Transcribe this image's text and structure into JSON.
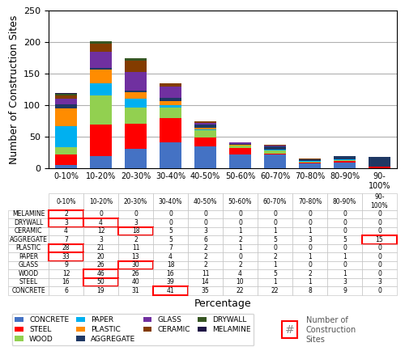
{
  "chart_data": {
    "type": "bar",
    "stacked": true,
    "categories": [
      "0-10%",
      "10-20%",
      "20-30%",
      "30-40%",
      "40-50%",
      "50-60%",
      "60-70%",
      "70-80%",
      "80-90%",
      "90-\n100%"
    ],
    "series": [
      {
        "name": "CONCRETE",
        "color": "#4472C4",
        "values": [
          6,
          19,
          31,
          41,
          35,
          22,
          22,
          8,
          9,
          0
        ]
      },
      {
        "name": "STEEL",
        "color": "#FF0000",
        "values": [
          16,
          50,
          40,
          39,
          14,
          10,
          1,
          1,
          3,
          3
        ]
      },
      {
        "name": "WOOD",
        "color": "#92D050",
        "values": [
          12,
          46,
          26,
          16,
          11,
          4,
          5,
          2,
          1,
          0
        ]
      },
      {
        "name": "PAPER",
        "color": "#00B0F0",
        "values": [
          33,
          20,
          13,
          4,
          2,
          0,
          2,
          1,
          1,
          0
        ]
      },
      {
        "name": "PLASTIC",
        "color": "#FF8C00",
        "values": [
          28,
          21,
          11,
          7,
          2,
          1,
          0,
          0,
          0,
          0
        ]
      },
      {
        "name": "AGGREGATE",
        "color": "#1F3864",
        "values": [
          7,
          3,
          2,
          5,
          6,
          2,
          5,
          3,
          5,
          15
        ]
      },
      {
        "name": "GLASS",
        "color": "#7030A0",
        "values": [
          9,
          26,
          30,
          18,
          2,
          2,
          1,
          0,
          0,
          0
        ]
      },
      {
        "name": "CERAMIC",
        "color": "#833C00",
        "values": [
          4,
          12,
          18,
          5,
          3,
          1,
          1,
          1,
          0,
          0
        ]
      },
      {
        "name": "DRYWALL",
        "color": "#375623",
        "values": [
          3,
          4,
          3,
          0,
          0,
          0,
          0,
          0,
          0,
          0
        ]
      },
      {
        "name": "MELAMINE",
        "color": "#1F1646",
        "values": [
          2,
          0,
          0,
          0,
          0,
          0,
          0,
          0,
          0,
          0
        ]
      }
    ],
    "ylabel": "Number of Construction Sites",
    "xlabel": "Percentage",
    "ylim": [
      0,
      250
    ],
    "yticks": [
      0,
      50,
      100,
      150,
      200,
      250
    ],
    "grid": true,
    "legend": "lower left",
    "table": {
      "rows": [
        "MELAMINE",
        "DRYWALL",
        "CERAMIC",
        "AGGREGATE",
        "PLASTIC",
        "PAPER",
        "GLASS",
        "WOOD",
        "STEEL",
        "CONCRETE"
      ],
      "highlights": [
        [
          0,
          0
        ],
        [
          1,
          0
        ],
        [
          1,
          1
        ],
        [
          2,
          2
        ],
        [
          3,
          9
        ],
        [
          4,
          0
        ],
        [
          5,
          0
        ],
        [
          6,
          2
        ],
        [
          7,
          1
        ],
        [
          8,
          1
        ],
        [
          9,
          3
        ]
      ],
      "highlight_key": {
        "symbol": "#",
        "label": "Number of\nConstruction\nSites",
        "color": "#FF0000"
      }
    }
  }
}
